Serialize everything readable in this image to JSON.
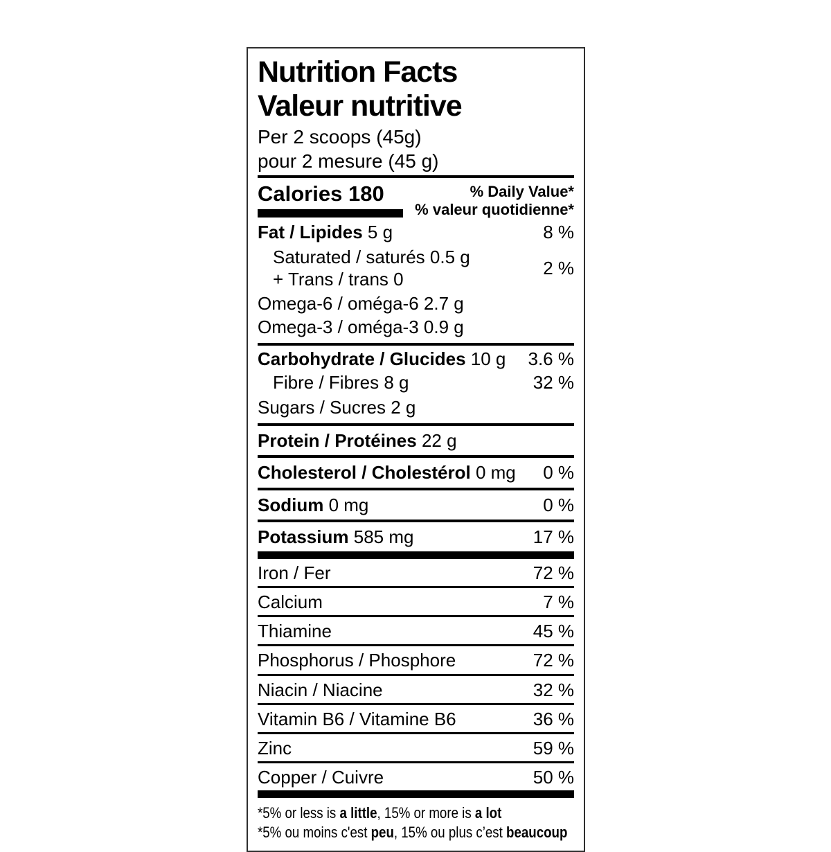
{
  "nutrition_label": {
    "title_en": "Nutrition Facts",
    "title_fr": "Valeur nutritive",
    "serving_en": "Per 2 scoops (45g)",
    "serving_fr": "pour 2 mesure (45 g)",
    "calories_label": "Calories",
    "calories_value": "180",
    "dv_header_en": "% Daily Value*",
    "dv_header_fr": "% valeur quotidienne*",
    "rows": {
      "fat": {
        "name": "Fat / Lipides",
        "amount": "5 g",
        "dv": "8 %"
      },
      "saturated": {
        "name": "Saturated / saturés 0.5 g"
      },
      "trans": {
        "name": "+ Trans / trans 0"
      },
      "sat_trans_dv": "2 %",
      "omega6": {
        "name": "Omega-6 / oméga-6 2.7 g"
      },
      "omega3": {
        "name": "Omega-3 / oméga-3 0.9 g"
      },
      "carbohydrate": {
        "name": "Carbohydrate / Glucides",
        "amount": "10 g",
        "dv": "3.6 %"
      },
      "fibre": {
        "name": "Fibre / Fibres 8 g",
        "dv": "32 %"
      },
      "sugars": {
        "name": "Sugars / Sucres 2 g"
      },
      "protein": {
        "name": "Protein / Protéines",
        "amount": "22 g"
      },
      "cholesterol": {
        "name": "Cholesterol / Cholestérol",
        "amount": "0 mg",
        "dv": "0 %"
      },
      "sodium": {
        "name": "Sodium",
        "amount": "0 mg",
        "dv": "0 %"
      },
      "potassium": {
        "name": "Potassium",
        "amount": "585 mg",
        "dv": "17 %"
      }
    },
    "micronutrients": [
      {
        "name": "Iron / Fer",
        "dv": "72 %"
      },
      {
        "name": "Calcium",
        "dv": "7 %"
      },
      {
        "name": "Thiamine",
        "dv": "45 %"
      },
      {
        "name": "Phosphorus / Phosphore",
        "dv": "72 %"
      },
      {
        "name": "Niacin / Niacine",
        "dv": "32 %"
      },
      {
        "name": "Vitamin B6 / Vitamine B6",
        "dv": "36 %"
      },
      {
        "name": "Zinc",
        "dv": "59 %"
      },
      {
        "name": "Copper / Cuivre",
        "dv": "50 %"
      }
    ],
    "footnote_en": {
      "pre": "*5% or less is ",
      "bold1": "a little",
      "mid": ", 15% or more is ",
      "bold2": "a lot"
    },
    "footnote_fr": {
      "pre": "*5% ou moins c'est ",
      "bold1": "peu",
      "mid": ", 15% ou plus c’est ",
      "bold2": "beaucoup"
    },
    "colors": {
      "text": "#000000",
      "border": "#2e2e2e",
      "background": "#ffffff"
    }
  }
}
